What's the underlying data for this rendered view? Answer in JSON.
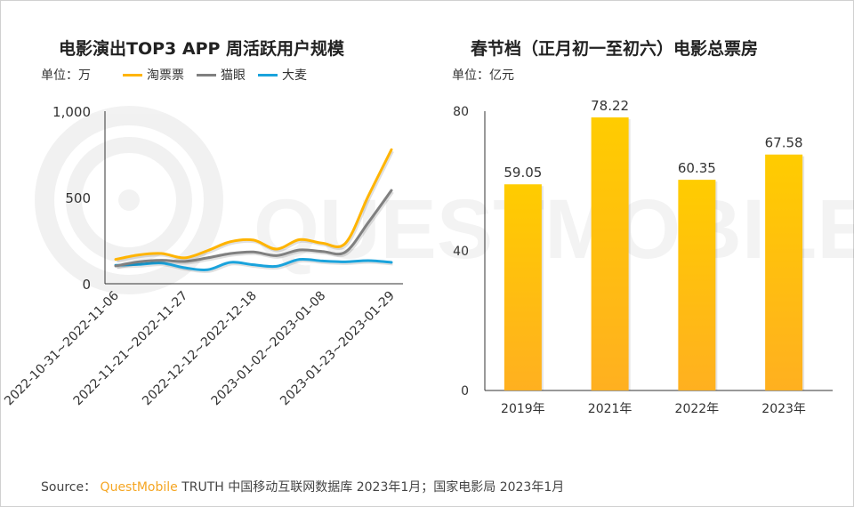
{
  "watermark": "QUESTMOBILE",
  "left_chart": {
    "title": "电影演出TOP3 APP 周活跃用户规模",
    "unit": "单位：万"
  },
  "right_chart": {
    "title": "春节档（正月初一至初六）电影总票房",
    "unit": "单位：亿元"
  },
  "source": {
    "prefix": "Source：",
    "brand": "QuestMobile",
    "text": "TRUTH 中国移动互联网数据库 2023年1月；国家电影局 2023年1月"
  },
  "chart_data": [
    {
      "type": "line",
      "title": "电影演出TOP3 APP 周活跃用户规模",
      "ylabel": "单位：万",
      "ylim": [
        0,
        1000
      ],
      "yticks": [
        "0",
        "500",
        "1,000"
      ],
      "ytick_values": [
        0,
        500,
        1000
      ],
      "legend": "top",
      "grid": false,
      "x_tick_labels": [
        "2022-10-31~2022-11-06",
        "2022-11-21~2022-11-27",
        "2022-12-12~2022-12-18",
        "2023-01-02~2023-01-08",
        "2023-01-23~2023-01-29"
      ],
      "x_tick_indices": [
        0,
        3,
        6,
        9,
        12
      ],
      "x_count": 13,
      "series": [
        {
          "name": "淘票票",
          "color": "#FFB400",
          "values": [
            141,
            167,
            175,
            150,
            192,
            244,
            253,
            201,
            256,
            235,
            235,
            510,
            777
          ]
        },
        {
          "name": "猫眼",
          "color": "#808080",
          "values": [
            103,
            127,
            136,
            129,
            150,
            175,
            184,
            163,
            196,
            187,
            184,
            356,
            541
          ]
        },
        {
          "name": "大麦",
          "color": "#1AA3DC",
          "values": [
            107,
            112,
            120,
            93,
            81,
            124,
            110,
            101,
            141,
            132,
            127,
            134,
            124
          ]
        }
      ]
    },
    {
      "type": "bar",
      "title": "春节档（正月初一至初六）电影总票房",
      "ylabel": "单位：亿元",
      "ylim": [
        0,
        80
      ],
      "yticks": [
        "0",
        "40",
        "80"
      ],
      "ytick_values": [
        0,
        40,
        80
      ],
      "grid": false,
      "categories": [
        "2019年",
        "2021年",
        "2022年",
        "2023年"
      ],
      "values": [
        59.05,
        78.22,
        60.35,
        67.58
      ],
      "labels": [
        "59.05",
        "78.22",
        "60.35",
        "67.58"
      ],
      "colors": {
        "top": "#FFCC00",
        "bottom": "#FFB020"
      }
    }
  ]
}
